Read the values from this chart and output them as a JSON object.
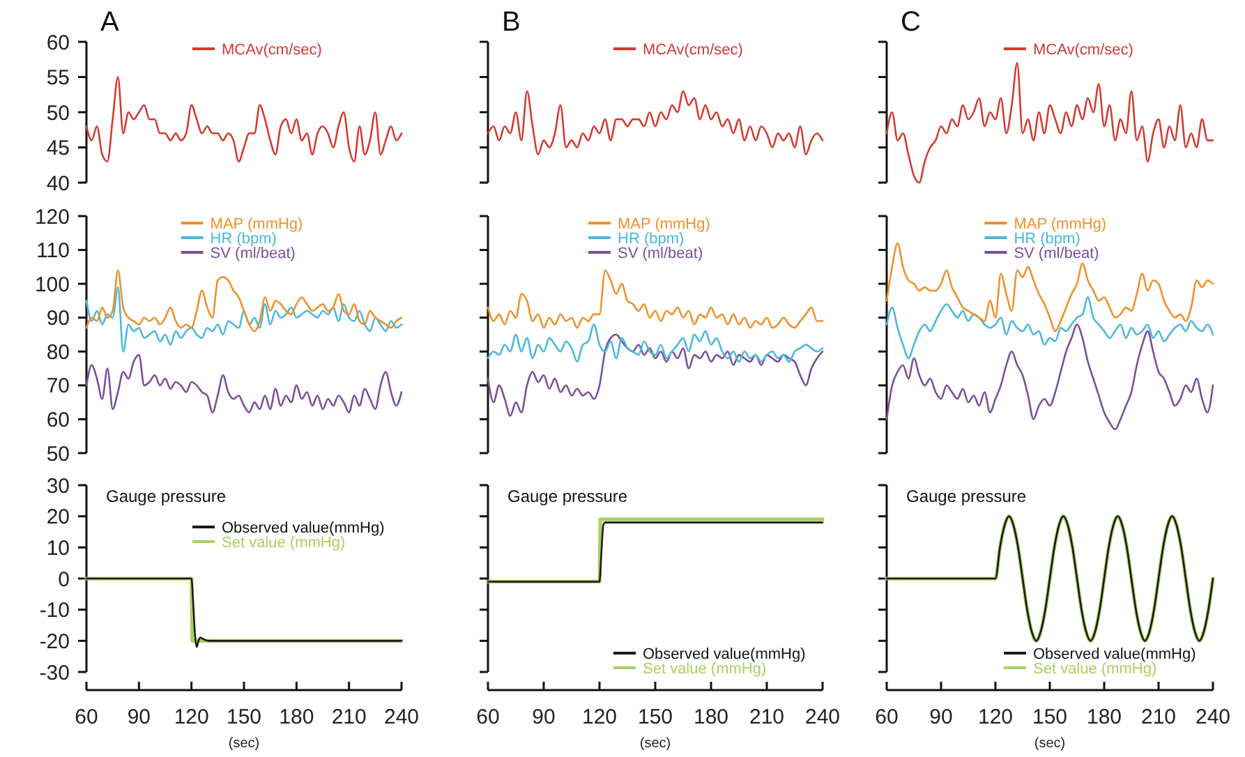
{
  "chart_data": [
    {
      "type": "line",
      "title": "A",
      "x": [
        60,
        63,
        66,
        69,
        72,
        75,
        78,
        81,
        84,
        87,
        90,
        93,
        96,
        99,
        102,
        105,
        108,
        111,
        114,
        117,
        120,
        123,
        126,
        129,
        132,
        135,
        138,
        141,
        144,
        147,
        150,
        153,
        156,
        159,
        162,
        165,
        168,
        171,
        174,
        177,
        180,
        183,
        186,
        189,
        192,
        195,
        198,
        201,
        204,
        207,
        210,
        213,
        216,
        219,
        222,
        225,
        228,
        231,
        234,
        237,
        240
      ],
      "xlim": [
        60,
        240
      ],
      "ylim": [
        40,
        60
      ],
      "yticks": [
        40,
        45,
        50,
        55,
        60
      ],
      "tick_labels": "y",
      "legend": "top right",
      "series": [
        {
          "name": "MCAv(cm/sec)",
          "color": "#d23a30",
          "values": [
            48,
            46,
            48,
            44,
            43,
            49,
            55,
            47,
            50,
            49,
            50,
            51,
            49,
            49,
            47,
            47,
            46,
            47,
            46,
            47,
            51,
            49,
            47,
            48,
            47,
            47,
            46,
            47,
            46,
            43,
            45,
            47,
            47,
            51,
            49,
            46,
            44,
            48,
            49,
            47,
            49,
            46,
            47,
            44,
            47,
            48,
            47,
            45,
            48,
            50,
            45,
            43,
            48,
            44,
            46,
            50,
            44,
            46,
            48,
            46,
            47
          ]
        }
      ]
    },
    {
      "type": "line",
      "title": "B",
      "x": [
        60,
        63,
        66,
        69,
        72,
        75,
        78,
        81,
        84,
        87,
        90,
        93,
        96,
        99,
        102,
        105,
        108,
        111,
        114,
        117,
        120,
        123,
        126,
        129,
        132,
        135,
        138,
        141,
        144,
        147,
        150,
        153,
        156,
        159,
        162,
        165,
        168,
        171,
        174,
        177,
        180,
        183,
        186,
        189,
        192,
        195,
        198,
        201,
        204,
        207,
        210,
        213,
        216,
        219,
        222,
        225,
        228,
        231,
        234,
        237,
        240
      ],
      "xlim": [
        60,
        240
      ],
      "ylim": [
        40,
        60
      ],
      "yticks": [
        40,
        45,
        50,
        55,
        60
      ],
      "tick_labels": false,
      "legend": "top right",
      "series": [
        {
          "name": "MCAv(cm/sec)",
          "color": "#d23a30",
          "values": [
            47,
            48,
            46,
            48,
            47,
            50,
            46,
            53,
            48,
            44,
            46,
            45,
            47,
            51,
            45,
            46,
            45,
            47,
            46,
            48,
            47,
            49,
            46,
            49,
            49,
            48,
            49,
            49,
            48,
            50,
            48,
            50,
            49,
            51,
            50,
            53,
            51,
            52,
            49,
            51,
            49,
            50,
            48,
            49,
            47,
            49,
            46,
            48,
            46,
            48,
            47,
            45,
            47,
            46,
            47,
            45,
            48,
            44,
            46,
            47,
            46
          ]
        }
      ]
    },
    {
      "type": "line",
      "title": "C",
      "x": [
        60,
        63,
        66,
        69,
        72,
        75,
        78,
        81,
        84,
        87,
        90,
        93,
        96,
        99,
        102,
        105,
        108,
        111,
        114,
        117,
        120,
        123,
        126,
        129,
        132,
        135,
        138,
        141,
        144,
        147,
        150,
        153,
        156,
        159,
        162,
        165,
        168,
        171,
        174,
        177,
        180,
        183,
        186,
        189,
        192,
        195,
        198,
        201,
        204,
        207,
        210,
        213,
        216,
        219,
        222,
        225,
        228,
        231,
        234,
        237,
        240
      ],
      "xlim": [
        60,
        240
      ],
      "ylim": [
        40,
        60
      ],
      "yticks": [
        40,
        45,
        50,
        55,
        60
      ],
      "tick_labels": false,
      "legend": "top right",
      "series": [
        {
          "name": "MCAv(cm/sec)",
          "color": "#d23a30",
          "values": [
            47,
            50,
            46,
            47,
            44,
            41,
            40,
            43,
            45,
            46,
            48,
            47,
            49,
            48,
            51,
            49,
            50,
            52,
            48,
            50,
            49,
            52,
            47,
            51,
            57,
            47,
            49,
            46,
            50,
            47,
            51,
            49,
            47,
            50,
            48,
            51,
            49,
            52,
            50,
            54,
            48,
            51,
            46,
            49,
            47,
            53,
            46,
            48,
            43,
            47,
            49,
            45,
            48,
            46,
            51,
            45,
            47,
            45,
            49,
            46,
            46
          ]
        }
      ]
    },
    {
      "type": "line",
      "x": [
        60,
        63,
        66,
        69,
        72,
        75,
        78,
        81,
        84,
        87,
        90,
        93,
        96,
        99,
        102,
        105,
        108,
        111,
        114,
        117,
        120,
        123,
        126,
        129,
        132,
        135,
        138,
        141,
        144,
        147,
        150,
        153,
        156,
        159,
        162,
        165,
        168,
        171,
        174,
        177,
        180,
        183,
        186,
        189,
        192,
        195,
        198,
        201,
        204,
        207,
        210,
        213,
        216,
        219,
        222,
        225,
        228,
        231,
        234,
        237,
        240
      ],
      "xlim": [
        60,
        240
      ],
      "ylim": [
        50,
        120
      ],
      "yticks": [
        50,
        60,
        70,
        80,
        90,
        100,
        110,
        120
      ],
      "tick_labels": "y",
      "legend": "top",
      "series": [
        {
          "name": "MAP (mmHg)",
          "color": "#f0902a",
          "values": [
            87,
            90,
            89,
            93,
            90,
            92,
            104,
            93,
            90,
            89,
            88,
            90,
            89,
            90,
            88,
            90,
            93,
            89,
            87,
            88,
            87,
            92,
            98,
            93,
            90,
            101,
            102,
            101,
            98,
            96,
            92,
            88,
            86,
            89,
            96,
            92,
            95,
            94,
            92,
            91,
            94,
            96,
            94,
            92,
            93,
            94,
            92,
            93,
            97,
            92,
            91,
            94,
            89,
            88,
            92,
            90,
            89,
            88,
            87,
            89,
            90
          ]
        },
        {
          "name": "HR (bpm)",
          "color": "#4ab8dc",
          "values": [
            95,
            89,
            92,
            88,
            91,
            90,
            99,
            80,
            88,
            86,
            87,
            84,
            85,
            86,
            83,
            85,
            82,
            86,
            84,
            86,
            87,
            85,
            84,
            87,
            86,
            88,
            85,
            89,
            88,
            87,
            92,
            88,
            90,
            87,
            94,
            88,
            92,
            90,
            91,
            93,
            90,
            91,
            92,
            91,
            90,
            92,
            91,
            93,
            89,
            94,
            90,
            89,
            92,
            88,
            86,
            90,
            88,
            86,
            89,
            87,
            88
          ]
        },
        {
          "name": "SV (ml/beat)",
          "color": "#7a4e9a",
          "values": [
            70,
            76,
            72,
            66,
            75,
            63,
            68,
            74,
            72,
            77,
            79,
            70,
            71,
            73,
            70,
            72,
            69,
            71,
            70,
            68,
            71,
            70,
            68,
            67,
            62,
            67,
            73,
            68,
            66,
            67,
            64,
            62,
            65,
            63,
            67,
            63,
            69,
            64,
            67,
            65,
            70,
            66,
            68,
            64,
            67,
            63,
            66,
            64,
            67,
            65,
            62,
            67,
            64,
            69,
            66,
            63,
            70,
            74,
            68,
            64,
            68
          ]
        }
      ]
    },
    {
      "type": "line",
      "x": [
        60,
        63,
        66,
        69,
        72,
        75,
        78,
        81,
        84,
        87,
        90,
        93,
        96,
        99,
        102,
        105,
        108,
        111,
        114,
        117,
        120,
        123,
        126,
        129,
        132,
        135,
        138,
        141,
        144,
        147,
        150,
        153,
        156,
        159,
        162,
        165,
        168,
        171,
        174,
        177,
        180,
        183,
        186,
        189,
        192,
        195,
        198,
        201,
        204,
        207,
        210,
        213,
        216,
        219,
        222,
        225,
        228,
        231,
        234,
        237,
        240
      ],
      "xlim": [
        60,
        240
      ],
      "ylim": [
        50,
        120
      ],
      "yticks": [
        50,
        60,
        70,
        80,
        90,
        100,
        110,
        120
      ],
      "tick_labels": false,
      "legend": "top",
      "series": [
        {
          "name": "MAP (mmHg)",
          "color": "#f0902a",
          "values": [
            93,
            89,
            91,
            88,
            92,
            90,
            97,
            95,
            89,
            91,
            87,
            90,
            88,
            91,
            89,
            90,
            87,
            90,
            89,
            91,
            91,
            104,
            101,
            97,
            100,
            95,
            94,
            92,
            94,
            90,
            92,
            89,
            92,
            91,
            93,
            90,
            92,
            88,
            91,
            90,
            93,
            90,
            91,
            88,
            91,
            88,
            90,
            87,
            89,
            88,
            90,
            87,
            88,
            90,
            88,
            87,
            89,
            91,
            93,
            89,
            89
          ]
        },
        {
          "name": "HR (bpm)",
          "color": "#4ab8dc",
          "values": [
            78,
            80,
            79,
            82,
            80,
            85,
            80,
            84,
            78,
            82,
            80,
            84,
            82,
            80,
            83,
            81,
            77,
            82,
            83,
            88,
            82,
            80,
            83,
            78,
            84,
            81,
            80,
            79,
            83,
            80,
            79,
            82,
            78,
            80,
            82,
            84,
            80,
            85,
            83,
            86,
            82,
            84,
            80,
            78,
            80,
            77,
            80,
            78,
            79,
            77,
            79,
            80,
            78,
            79,
            77,
            80,
            81,
            82,
            81,
            80,
            81
          ]
        },
        {
          "name": "SV (ml/beat)",
          "color": "#7a4e9a",
          "values": [
            72,
            65,
            70,
            66,
            61,
            65,
            62,
            70,
            74,
            71,
            73,
            69,
            72,
            68,
            70,
            67,
            69,
            67,
            68,
            66,
            70,
            80,
            84,
            85,
            83,
            81,
            80,
            82,
            79,
            81,
            78,
            80,
            77,
            80,
            78,
            81,
            75,
            79,
            78,
            80,
            77,
            79,
            78,
            80,
            76,
            79,
            78,
            77,
            79,
            76,
            79,
            78,
            77,
            79,
            78,
            77,
            73,
            70,
            75,
            78,
            80
          ]
        }
      ]
    },
    {
      "type": "line",
      "x": [
        60,
        63,
        66,
        69,
        72,
        75,
        78,
        81,
        84,
        87,
        90,
        93,
        96,
        99,
        102,
        105,
        108,
        111,
        114,
        117,
        120,
        123,
        126,
        129,
        132,
        135,
        138,
        141,
        144,
        147,
        150,
        153,
        156,
        159,
        162,
        165,
        168,
        171,
        174,
        177,
        180,
        183,
        186,
        189,
        192,
        195,
        198,
        201,
        204,
        207,
        210,
        213,
        216,
        219,
        222,
        225,
        228,
        231,
        234,
        237,
        240
      ],
      "xlim": [
        60,
        240
      ],
      "ylim": [
        50,
        120
      ],
      "yticks": [
        50,
        60,
        70,
        80,
        90,
        100,
        110,
        120
      ],
      "tick_labels": false,
      "legend": "top",
      "series": [
        {
          "name": "MAP (mmHg)",
          "color": "#f0902a",
          "values": [
            95,
            105,
            112,
            105,
            101,
            100,
            98,
            99,
            98,
            98,
            100,
            104,
            99,
            96,
            93,
            92,
            91,
            90,
            89,
            95,
            90,
            103,
            97,
            92,
            104,
            102,
            105,
            101,
            97,
            94,
            90,
            86,
            89,
            93,
            97,
            100,
            106,
            101,
            98,
            95,
            96,
            93,
            90,
            91,
            93,
            92,
            97,
            103,
            98,
            101,
            100,
            95,
            92,
            90,
            91,
            89,
            93,
            101,
            99,
            101,
            100
          ]
        },
        {
          "name": "HR (bpm)",
          "color": "#4ab8dc",
          "values": [
            88,
            93,
            87,
            82,
            78,
            82,
            86,
            88,
            86,
            89,
            92,
            94,
            92,
            90,
            92,
            89,
            91,
            90,
            88,
            87,
            88,
            90,
            85,
            89,
            87,
            86,
            88,
            85,
            86,
            82,
            84,
            83,
            87,
            86,
            88,
            90,
            91,
            96,
            90,
            88,
            86,
            84,
            86,
            88,
            84,
            87,
            85,
            86,
            88,
            84,
            86,
            83,
            85,
            87,
            88,
            86,
            89,
            87,
            86,
            88,
            85
          ]
        },
        {
          "name": "SV (ml/beat)",
          "color": "#7a4e9a",
          "values": [
            60,
            70,
            74,
            76,
            72,
            78,
            73,
            70,
            72,
            68,
            66,
            70,
            68,
            66,
            69,
            65,
            67,
            64,
            68,
            62,
            66,
            70,
            76,
            80,
            76,
            73,
            67,
            60,
            64,
            66,
            64,
            68,
            74,
            80,
            84,
            88,
            84,
            77,
            72,
            67,
            62,
            59,
            57,
            60,
            64,
            68,
            76,
            82,
            86,
            80,
            74,
            72,
            68,
            64,
            66,
            70,
            68,
            72,
            66,
            62,
            70
          ]
        }
      ]
    },
    {
      "type": "line",
      "title": "Gauge pressure",
      "xlabel": "(sec)",
      "xlim": [
        60,
        240
      ],
      "xticks": [
        60,
        90,
        120,
        150,
        180,
        210,
        240
      ],
      "ylim": [
        -30,
        30
      ],
      "yticks": [
        -30,
        -20,
        -10,
        0,
        10,
        20,
        30
      ],
      "legend": "top right",
      "series": [
        {
          "name": "Observed value(mmHg)",
          "color": "#1a1a1a",
          "x": [
            60,
            120,
            121,
            122,
            123,
            124,
            125,
            127,
            130,
            240
          ],
          "values": [
            0,
            0,
            -8,
            -18,
            -22,
            -20,
            -19,
            -19.5,
            -20,
            -20
          ]
        },
        {
          "name": "Set value (mmHg)",
          "color": "#a8d060",
          "x": [
            60,
            120,
            120.5,
            240
          ],
          "values": [
            0,
            0,
            -20,
            -20
          ]
        }
      ]
    },
    {
      "type": "line",
      "title": "Gauge pressure",
      "xlabel": "(sec)",
      "xlim": [
        60,
        240
      ],
      "xticks": [
        60,
        90,
        120,
        150,
        180,
        210,
        240
      ],
      "ylim": [
        -30,
        30
      ],
      "yticks": [
        -30,
        -20,
        -10,
        0,
        10,
        20,
        30
      ],
      "tick_labels": "x",
      "legend": "bottom right",
      "series": [
        {
          "name": "Observed value(mmHg)",
          "color": "#1a1a1a",
          "x": [
            60,
            120,
            121,
            122,
            123,
            125,
            240
          ],
          "values": [
            -1,
            -1,
            8,
            17,
            18,
            18,
            18
          ]
        },
        {
          "name": "Set value (mmHg)",
          "color": "#a8d060",
          "x": [
            60,
            120,
            120.5,
            240
          ],
          "values": [
            -1,
            -1,
            19,
            19
          ]
        }
      ]
    },
    {
      "type": "line",
      "title": "Gauge pressure",
      "xlabel": "(sec)",
      "xlim": [
        60,
        240
      ],
      "xticks": [
        60,
        90,
        120,
        150,
        180,
        210,
        240
      ],
      "ylim": [
        -30,
        30
      ],
      "yticks": [
        -30,
        -20,
        -10,
        0,
        10,
        20,
        30
      ],
      "tick_labels": "x",
      "legend": "bottom right",
      "series": [
        {
          "name": "Observed value(mmHg)",
          "color": "#1a1a1a",
          "x": [
            60,
            120,
            122.5,
            125,
            127.5,
            130,
            132.5,
            135,
            137.5,
            140,
            142.5,
            145,
            147.5,
            150,
            152.5,
            155,
            157.5,
            160,
            162.5,
            165,
            167.5,
            170,
            172.5,
            175,
            177.5,
            180,
            182.5,
            185,
            187.5,
            190,
            192.5,
            195,
            197.5,
            200,
            202.5,
            205,
            207.5,
            210,
            212.5,
            215,
            217.5,
            220,
            222.5,
            225,
            227.5,
            230,
            232.5,
            235,
            237.5,
            240
          ],
          "values": [
            0,
            0,
            10,
            17,
            20,
            17,
            10,
            0,
            -10,
            -17,
            -20,
            -17,
            -10,
            0,
            10,
            17,
            20,
            17,
            10,
            0,
            -10,
            -17,
            -20,
            -17,
            -10,
            0,
            10,
            17,
            20,
            17,
            10,
            0,
            -10,
            -17,
            -20,
            -17,
            -10,
            0,
            10,
            17,
            20,
            17,
            10,
            0,
            -10,
            -17,
            -20,
            -17,
            -10,
            0
          ]
        },
        {
          "name": "Set value (mmHg)",
          "color": "#a8d060",
          "x": [
            60,
            120,
            122.5,
            125,
            127.5,
            130,
            132.5,
            135,
            137.5,
            140,
            142.5,
            145,
            147.5,
            150,
            152.5,
            155,
            157.5,
            160,
            162.5,
            165,
            167.5,
            170,
            172.5,
            175,
            177.5,
            180,
            182.5,
            185,
            187.5,
            190,
            192.5,
            195,
            197.5,
            200,
            202.5,
            205,
            207.5,
            210,
            212.5,
            215,
            217.5,
            220,
            222.5,
            225,
            227.5,
            230,
            232.5,
            235,
            237.5,
            240
          ],
          "values": [
            0,
            0,
            10,
            17,
            20,
            17,
            10,
            0,
            -10,
            -17,
            -20,
            -17,
            -10,
            0,
            10,
            17,
            20,
            17,
            10,
            0,
            -10,
            -17,
            -20,
            -17,
            -10,
            0,
            10,
            17,
            20,
            17,
            10,
            0,
            -10,
            -17,
            -20,
            -17,
            -10,
            0,
            10,
            17,
            20,
            17,
            10,
            0,
            -10,
            -17,
            -20,
            -17,
            -10,
            0
          ]
        }
      ]
    }
  ]
}
